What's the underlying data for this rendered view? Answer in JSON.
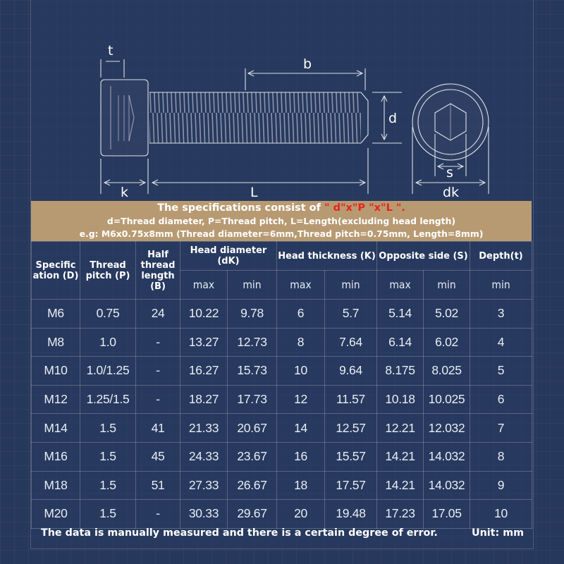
{
  "diagram": {
    "label_t": "t",
    "label_b": "b",
    "label_d": "d",
    "label_k": "k",
    "label_L": "L",
    "label_s": "s",
    "label_dk": "dk"
  },
  "banner": {
    "line1_prefix": "The specifications consist of",
    "line1_highlight": "\" d\"x\"P \"x\"L \".",
    "line2": "d=Thread diameter, P=Thread pitch, L=Length(excluding head length)",
    "line3": "e.g: M6x0.75x8mm (Thread diameter=6mm,Thread pitch=0.75mm, Length=8mm)",
    "highlight_color": "#e8231c"
  },
  "table": {
    "headers": {
      "spec": "Specific ation (D)",
      "pitch": "Thread pitch (P)",
      "half": "Half thread length (B)",
      "headdia": "Head diameter (dK)",
      "headthick": "Head thickness (K)",
      "opp": "Opposite side (S)",
      "depth": "Depth(t)"
    },
    "subheaders": [
      "max",
      "min",
      "max",
      "min",
      "max",
      "min",
      "min"
    ],
    "rows": [
      [
        "M6",
        "0.75",
        "24",
        "10.22",
        "9.78",
        "6",
        "5.7",
        "5.14",
        "5.02",
        "3"
      ],
      [
        "M8",
        "1.0",
        "-",
        "13.27",
        "12.73",
        "8",
        "7.64",
        "6.14",
        "6.02",
        "4"
      ],
      [
        "M10",
        "1.0/1.25",
        "-",
        "16.27",
        "15.73",
        "10",
        "9.64",
        "8.175",
        "8.025",
        "5"
      ],
      [
        "M12",
        "1.25/1.5",
        "-",
        "18.27",
        "17.73",
        "12",
        "11.57",
        "10.18",
        "10.025",
        "6"
      ],
      [
        "M14",
        "1.5",
        "41",
        "21.33",
        "20.67",
        "14",
        "12.57",
        "12.21",
        "12.032",
        "7"
      ],
      [
        "M16",
        "1.5",
        "45",
        "24.33",
        "23.67",
        "16",
        "15.57",
        "14.21",
        "14.032",
        "8"
      ],
      [
        "M18",
        "1.5",
        "51",
        "27.33",
        "26.67",
        "18",
        "17.57",
        "14.21",
        "14.032",
        "9"
      ],
      [
        "M20",
        "1.5",
        "-",
        "30.33",
        "29.67",
        "20",
        "19.48",
        "17.23",
        "17.05",
        "10"
      ]
    ]
  },
  "footer": {
    "note": "The data is manually measured and there is a certain degree of error.",
    "unit": "Unit: mm"
  }
}
